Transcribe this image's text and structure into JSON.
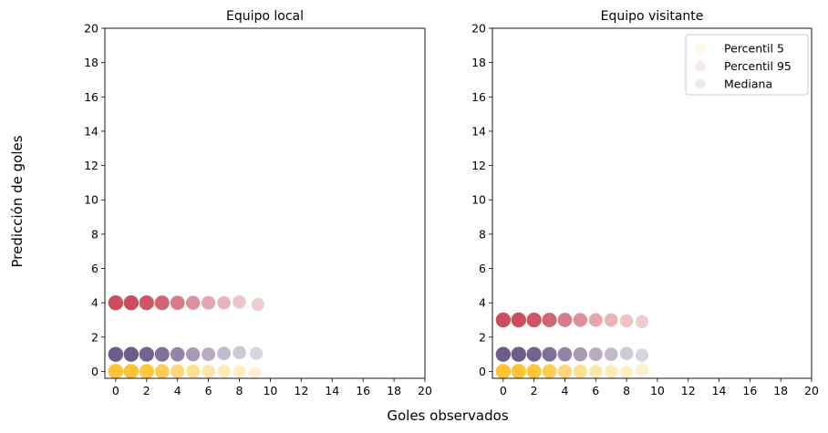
{
  "figure": {
    "supxlabel": "Goles observados",
    "supylabel": "Predicción de goles"
  },
  "colors": {
    "p5": "#fbbd1f",
    "p95": "#c43b4e",
    "median": "#5e4a7c"
  },
  "chart_data": [
    {
      "type": "scatter",
      "title": "Equipo local",
      "xlim": [
        -0.7,
        20
      ],
      "ylim": [
        -0.4,
        20
      ],
      "xticks": [
        0,
        2,
        4,
        6,
        8,
        10,
        12,
        14,
        16,
        18,
        20
      ],
      "yticks": [
        0,
        2,
        4,
        6,
        8,
        10,
        12,
        14,
        16,
        18,
        20
      ],
      "grid": false,
      "legend": null,
      "series": [
        {
          "key": "p5",
          "color": "#fbbd1f",
          "x": [
            0,
            1,
            2,
            3,
            4,
            5,
            6,
            7,
            8,
            9
          ],
          "y": [
            0,
            0,
            0,
            0,
            0,
            0,
            0,
            0,
            0,
            -0.1
          ],
          "weight": [
            1,
            1,
            0.95,
            0.8,
            0.6,
            0.45,
            0.3,
            0.2,
            0.15,
            0.08
          ]
        },
        {
          "key": "p95",
          "color": "#c43b4e",
          "x": [
            0,
            1,
            2,
            3,
            4,
            5,
            6,
            7,
            8,
            9.2
          ],
          "y": [
            4,
            4,
            4,
            4,
            4,
            4,
            4,
            4,
            4.05,
            3.9
          ],
          "weight": [
            1,
            1,
            0.95,
            0.85,
            0.7,
            0.55,
            0.4,
            0.3,
            0.2,
            0.15
          ]
        },
        {
          "key": "median",
          "color": "#5e4a7c",
          "x": [
            0,
            1,
            2,
            3,
            4,
            5,
            6,
            7,
            8,
            9.1
          ],
          "y": [
            1,
            1,
            1,
            1,
            1,
            1,
            1,
            1.05,
            1.1,
            1.05
          ],
          "weight": [
            1,
            1,
            0.95,
            0.85,
            0.7,
            0.55,
            0.4,
            0.3,
            0.2,
            0.12
          ]
        }
      ]
    },
    {
      "type": "scatter",
      "title": "Equipo visitante",
      "xlim": [
        -0.7,
        20
      ],
      "ylim": [
        -0.4,
        20
      ],
      "xticks": [
        0,
        2,
        4,
        6,
        8,
        10,
        12,
        14,
        16,
        18,
        20
      ],
      "yticks": [
        0,
        2,
        4,
        6,
        8,
        10,
        12,
        14,
        16,
        18,
        20
      ],
      "grid": false,
      "legend": {
        "placement": "top-right",
        "entries": [
          {
            "key": "p5",
            "label": "Percentil 5",
            "color": "#fbbd1f"
          },
          {
            "key": "p95",
            "label": "Percentil 95",
            "color": "#c43b4e"
          },
          {
            "key": "median",
            "label": "Mediana",
            "color": "#5e4a7c"
          }
        ]
      },
      "series": [
        {
          "key": "p5",
          "color": "#fbbd1f",
          "x": [
            0,
            1,
            2,
            3,
            4,
            5,
            6,
            7,
            8,
            9
          ],
          "y": [
            0,
            0,
            0,
            0,
            0,
            0,
            0,
            0,
            -0.05,
            0.1
          ],
          "weight": [
            1,
            1,
            0.95,
            0.8,
            0.6,
            0.45,
            0.3,
            0.2,
            0.15,
            0.08
          ]
        },
        {
          "key": "p95",
          "color": "#c43b4e",
          "x": [
            0,
            1,
            2,
            3,
            4,
            5,
            6,
            7,
            8,
            9
          ],
          "y": [
            3,
            3,
            3,
            3,
            3,
            3,
            3,
            3,
            2.95,
            2.9
          ],
          "weight": [
            1,
            1,
            0.95,
            0.85,
            0.7,
            0.55,
            0.4,
            0.3,
            0.2,
            0.15
          ]
        },
        {
          "key": "median",
          "color": "#5e4a7c",
          "x": [
            0,
            1,
            2,
            3,
            4,
            5,
            6,
            7,
            8,
            9
          ],
          "y": [
            1,
            1,
            1,
            1,
            1,
            1,
            1,
            1,
            1.05,
            0.95
          ],
          "weight": [
            1,
            1,
            0.95,
            0.85,
            0.7,
            0.55,
            0.4,
            0.3,
            0.2,
            0.12
          ]
        }
      ]
    }
  ]
}
